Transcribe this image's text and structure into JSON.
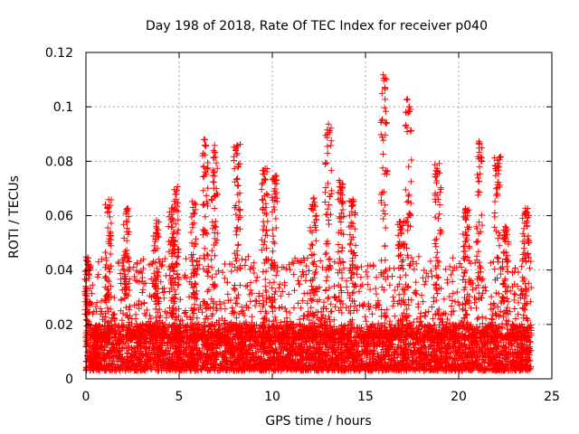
{
  "chart_data": {
    "type": "scatter",
    "title": "Day 198 of 2018, Rate Of TEC Index for receiver p040",
    "xlabel": "GPS time / hours",
    "ylabel": "ROTI / TECUs",
    "xlim": [
      0,
      25
    ],
    "ylim": [
      0,
      0.12
    ],
    "xticks": [
      0,
      5,
      10,
      15,
      20,
      25
    ],
    "xtick_labels": [
      "0",
      "5",
      "10",
      "15",
      "20",
      "25"
    ],
    "yticks": [
      0,
      0.02,
      0.04,
      0.06,
      0.08,
      0.1,
      0.12
    ],
    "ytick_labels": [
      "0",
      "0.02",
      "0.04",
      "0.06",
      "0.08",
      "0.1",
      "0.12"
    ],
    "grid": true,
    "marker": "+",
    "series": [
      {
        "name": "ROTI",
        "color": "#ff0000",
        "x_range": [
          0,
          23.9
        ],
        "baseline_range": [
          0.003,
          0.02
        ],
        "peaks": [
          {
            "x": 0.1,
            "y": 0.045
          },
          {
            "x": 1.2,
            "y": 0.067
          },
          {
            "x": 2.2,
            "y": 0.063
          },
          {
            "x": 3.8,
            "y": 0.059
          },
          {
            "x": 4.6,
            "y": 0.063
          },
          {
            "x": 4.8,
            "y": 0.071
          },
          {
            "x": 5.8,
            "y": 0.066
          },
          {
            "x": 6.4,
            "y": 0.088
          },
          {
            "x": 6.9,
            "y": 0.087
          },
          {
            "x": 8.1,
            "y": 0.087
          },
          {
            "x": 9.6,
            "y": 0.078
          },
          {
            "x": 10.1,
            "y": 0.075
          },
          {
            "x": 12.2,
            "y": 0.067
          },
          {
            "x": 13.0,
            "y": 0.094
          },
          {
            "x": 13.7,
            "y": 0.073
          },
          {
            "x": 14.3,
            "y": 0.066
          },
          {
            "x": 16.0,
            "y": 0.112
          },
          {
            "x": 16.9,
            "y": 0.058
          },
          {
            "x": 17.3,
            "y": 0.103
          },
          {
            "x": 18.9,
            "y": 0.08
          },
          {
            "x": 20.4,
            "y": 0.063
          },
          {
            "x": 21.1,
            "y": 0.088
          },
          {
            "x": 22.1,
            "y": 0.082
          },
          {
            "x": 22.5,
            "y": 0.056
          },
          {
            "x": 23.6,
            "y": 0.063
          }
        ]
      }
    ]
  }
}
